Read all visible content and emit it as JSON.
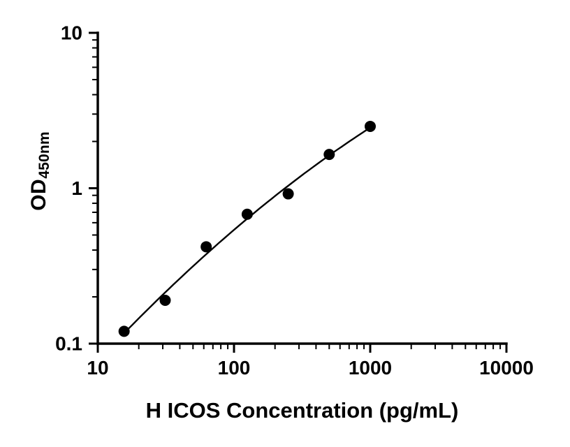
{
  "chart_data": {
    "type": "scatter",
    "title": "",
    "xlabel": "H ICOS Concentration (pg/mL)",
    "ylabel": "OD",
    "ylabel_subscript": "450nm",
    "x_scale": "log",
    "y_scale": "log",
    "xlim": [
      10,
      10000
    ],
    "ylim": [
      0.1,
      10
    ],
    "x_ticks": {
      "values": [
        10,
        100,
        1000,
        10000
      ],
      "labels": [
        "10",
        "100",
        "1000",
        "10000"
      ]
    },
    "y_ticks": {
      "values": [
        0.1,
        1,
        10
      ],
      "labels": [
        "0.1",
        "1",
        "10"
      ]
    },
    "grid": false,
    "legend": "none",
    "trendline": "smooth fit curve through points (quadratic in log-log space)",
    "points": [
      {
        "x": 15.6,
        "y": 0.12
      },
      {
        "x": 31.25,
        "y": 0.19
      },
      {
        "x": 62.5,
        "y": 0.42
      },
      {
        "x": 125,
        "y": 0.68
      },
      {
        "x": 250,
        "y": 0.92
      },
      {
        "x": 500,
        "y": 1.65
      },
      {
        "x": 1000,
        "y": 2.5
      }
    ],
    "colors": {
      "points": "#000000",
      "curve": "#000000",
      "axis": "#000000"
    }
  }
}
